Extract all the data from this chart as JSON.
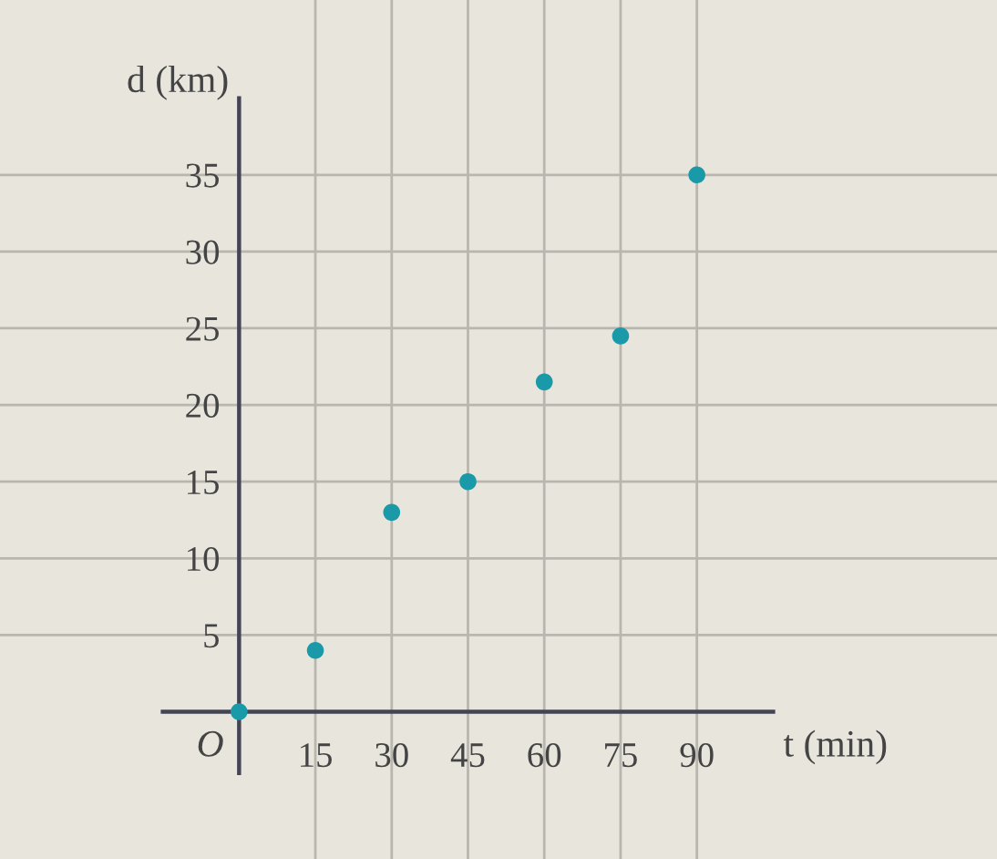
{
  "chart_data": {
    "type": "scatter",
    "xlabel": "t (min)",
    "ylabel": "d (km)",
    "x": [
      0,
      15,
      30,
      45,
      60,
      75,
      90
    ],
    "series": [
      {
        "color": "#1a9aa8",
        "values": [
          0,
          4,
          13,
          15,
          21.5,
          24.5,
          35
        ]
      }
    ],
    "xlim": [
      -47,
      149
    ],
    "ylim": [
      -9.6,
      46.4
    ],
    "xticks": [
      15,
      30,
      45,
      60,
      75,
      90
    ],
    "yticks": [
      5,
      10,
      15,
      20,
      25,
      30,
      35
    ],
    "grid": true,
    "marker": "circle",
    "annotations": [
      {
        "text": "O",
        "x": 0,
        "y": 0
      }
    ]
  }
}
